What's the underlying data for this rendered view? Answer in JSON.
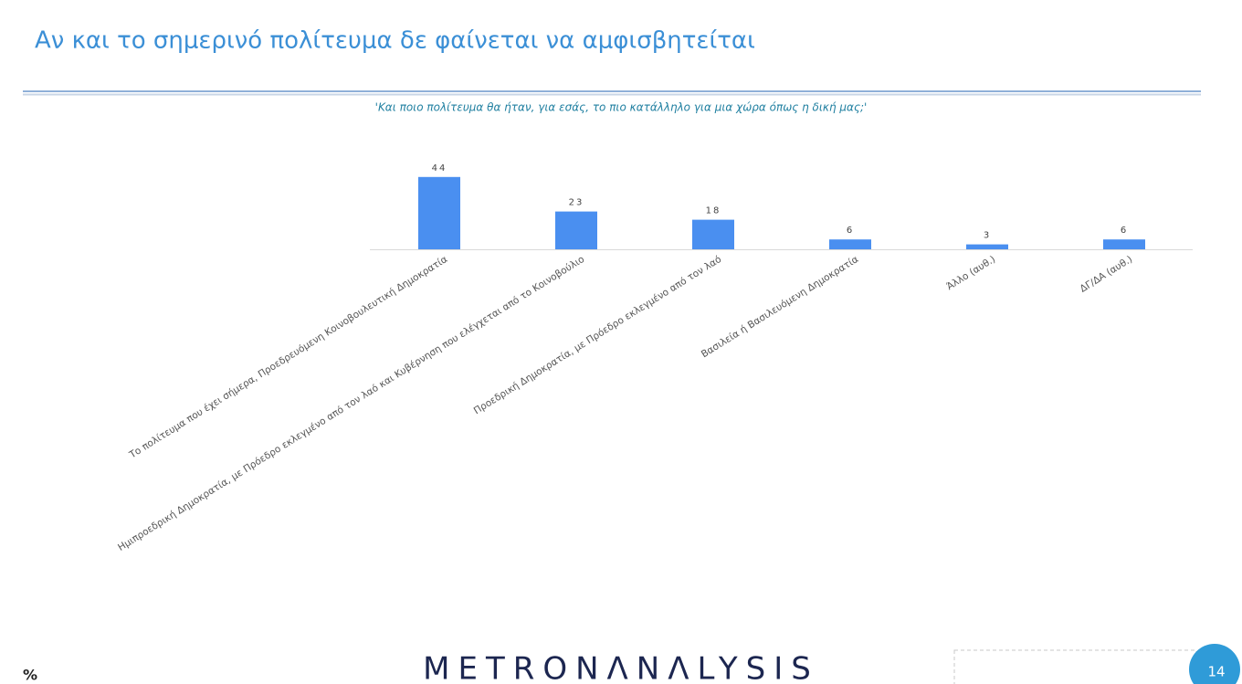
{
  "chart_data": {
    "type": "bar",
    "title": "Αν και το σημερινό πολίτευμα δε φαίνεται να αμφισβητείται",
    "subtitle": "'Και ποιο πολίτευμα θα ήταν, για εσάς, το πιο κατάλληλο για μια χώρα όπως η δική μας;'",
    "categories": [
      "Το πολίτευμα που έχει σήμερα, Προεδρευόμενη Κοινοβουλευτική Δημοκρατία",
      "Ημιπροεδρική Δημοκρατία, με Πρόεδρο εκλεγμένο από τον λαό και Κυβέρνηση που ελέγχεται από το Κοινοβούλιο",
      "Προεδρική Δημοκρατία, με Πρόεδρο εκλεγμένο από τον λαό",
      "Βασιλεία ή Βασιλευόμενη Δημοκρατία",
      "Άλλο (αυθ.)",
      "ΔΓ/ΔΑ (αυθ.)"
    ],
    "values": [
      44,
      23,
      18,
      6,
      3,
      6
    ],
    "color": "#4a8ff0",
    "unit": "%",
    "brand": "METRONΛNΛLYSIS",
    "page": "14"
  }
}
